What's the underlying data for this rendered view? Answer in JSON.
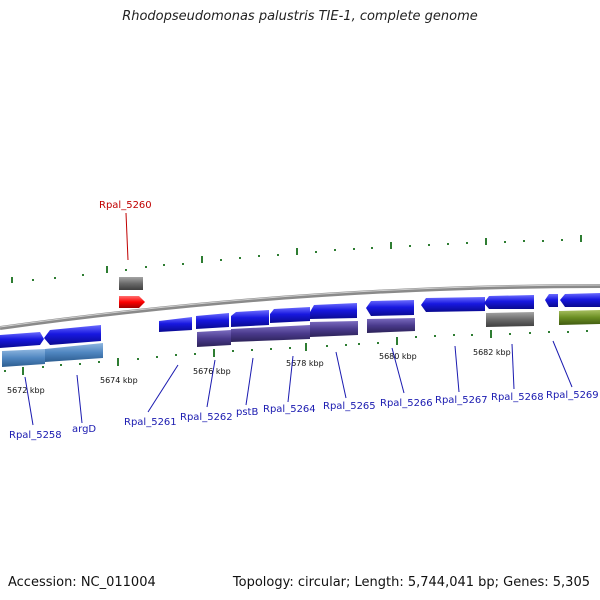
{
  "title": "Rhodopseudomonas palustris TIE-1, complete genome",
  "footer": {
    "accession": "Accession: NC_011004",
    "summary": "Topology: circular; Length: 5,744,041 bp; Genes: 5,305"
  },
  "scale_labels": [
    "5672 kbp",
    "5674 kbp",
    "5676 kbp",
    "5678 kbp",
    "5680 kbp",
    "5682 kbp"
  ],
  "gene_labels": [
    {
      "name": "Rpal_5258",
      "highlight": false
    },
    {
      "name": "argD",
      "highlight": false
    },
    {
      "name": "Rpal_5261",
      "highlight": false
    },
    {
      "name": "Rpal_5262",
      "highlight": false
    },
    {
      "name": "pstB",
      "highlight": false
    },
    {
      "name": "Rpal_5264",
      "highlight": false
    },
    {
      "name": "Rpal_5265",
      "highlight": false
    },
    {
      "name": "Rpal_5266",
      "highlight": false
    },
    {
      "name": "Rpal_5267",
      "highlight": false
    },
    {
      "name": "Rpal_5268",
      "highlight": false
    },
    {
      "name": "Rpal_5269",
      "highlight": false
    },
    {
      "name": "Rpal_5260",
      "highlight": true
    }
  ],
  "colors": {
    "backbone": "#8a8a8a",
    "cds": "#1818e0",
    "highlight": "#ff0000",
    "gene_product_1": "#4f86c0",
    "gene_product_2": "#4a3a8c",
    "gene_product_3": "#6a6a6a",
    "gene_product_4": "#6b8e23",
    "tick": "#2e7d32",
    "label": "#1a1ab0",
    "highlight_label": "#c00000"
  }
}
